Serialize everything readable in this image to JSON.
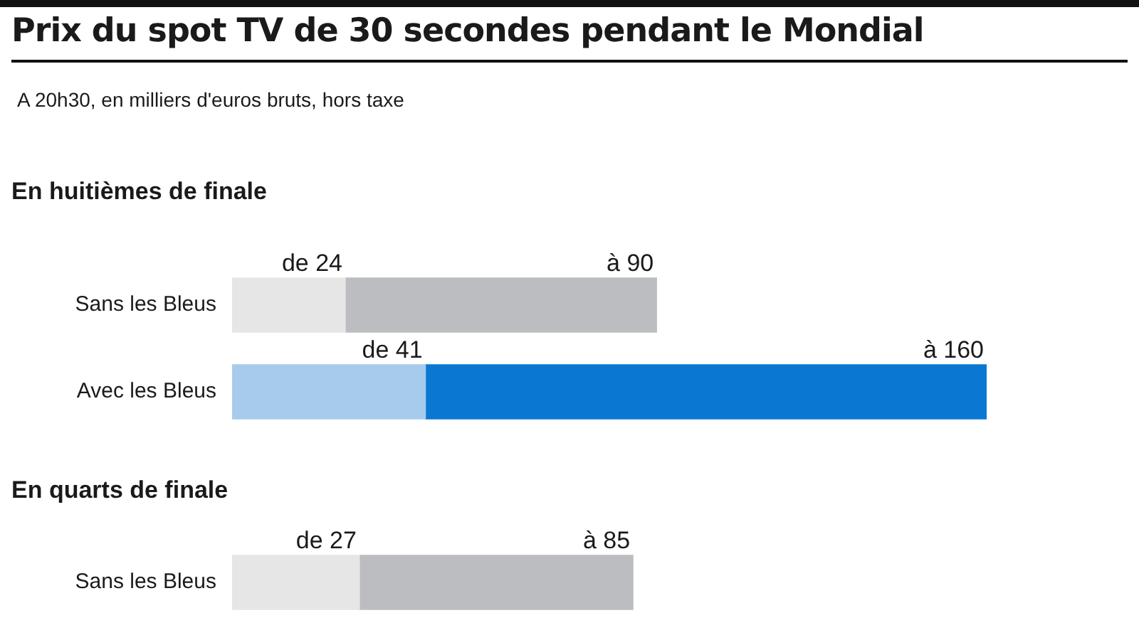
{
  "chart_data": [
    {
      "type": "bar",
      "title": "Prix du spot TV de 30 secondes pendant le Mondial",
      "subtitle": "A 20h30, en milliers d'euros bruts, hors taxe",
      "annotations": [
        "En huitièmes de finale"
      ],
      "orientation": "horizontal",
      "stacked": true,
      "legend": false,
      "categories": [
        "Sans les Bleus",
        "Avec les Bleus"
      ],
      "series": [
        {
          "colors": [
            "#e6e6e6",
            "#a7cbec"
          ],
          "values": [
            24,
            41
          ],
          "value_labels": [
            "de 24",
            "de 41"
          ]
        },
        {
          "colors": [
            "#bcbdc0",
            "#0a78d2"
          ],
          "values": [
            66,
            119
          ],
          "value_labels": [
            "à 90",
            "à 160"
          ]
        }
      ]
    },
    {
      "type": "bar",
      "annotations": [
        "En quarts de finale"
      ],
      "orientation": "horizontal",
      "stacked": true,
      "legend": false,
      "categories": [
        "Sans les Bleus"
      ],
      "series": [
        {
          "colors": [
            "#e6e6e6"
          ],
          "values": [
            27
          ],
          "value_labels": [
            "de 27"
          ]
        },
        {
          "colors": [
            "#bcbdc0"
          ],
          "values": [
            58
          ],
          "value_labels": [
            "à 85"
          ]
        }
      ]
    }
  ]
}
